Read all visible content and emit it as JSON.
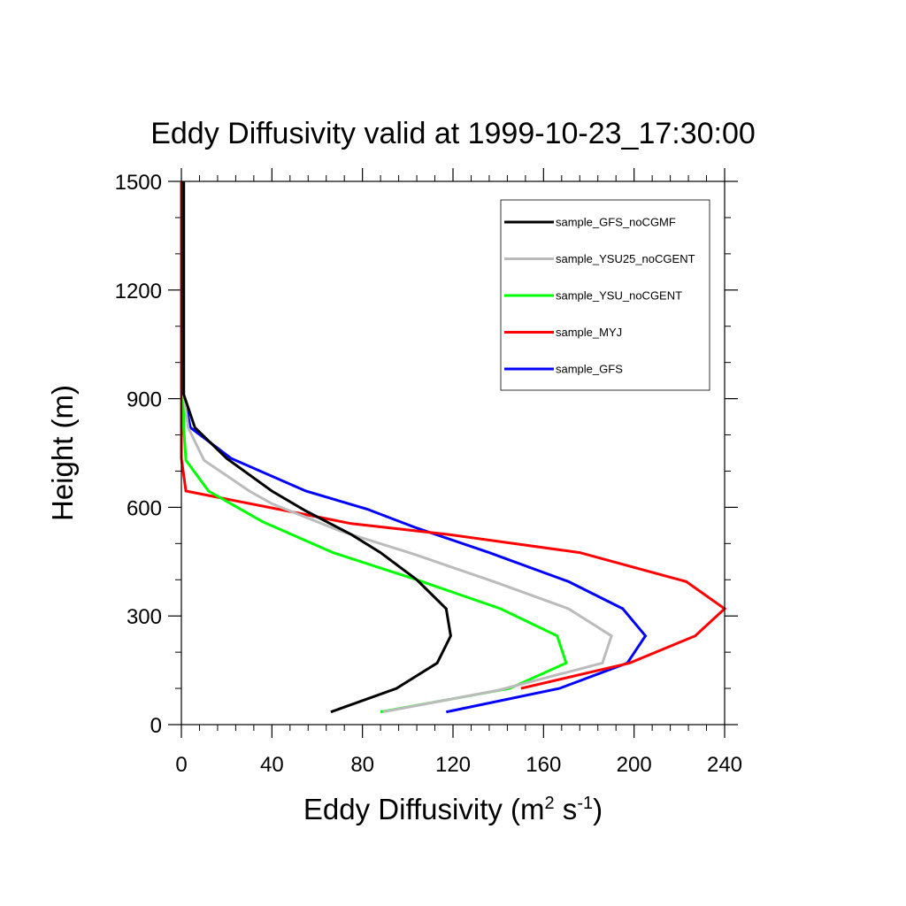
{
  "chart_data": {
    "type": "line",
    "title": "Eddy Diffusivity valid at 1999-10-23_17:30:00",
    "xlabel_main": "Eddy Diffusivity (m",
    "xlabel_sup1": "2",
    "xlabel_mid": " s",
    "xlabel_sup2": "-1",
    "xlabel_end": ")",
    "ylabel": "Height (m)",
    "xlim": [
      0,
      240
    ],
    "ylim": [
      0,
      1500
    ],
    "xticks": [
      0,
      40,
      80,
      120,
      160,
      200,
      240
    ],
    "yticks": [
      0,
      300,
      600,
      900,
      1200,
      1500
    ],
    "legend_position": "top-right",
    "series": [
      {
        "name": "sample_GFS_noCGMF",
        "color": "#000000",
        "points": [
          [
            66,
            35
          ],
          [
            95,
            100
          ],
          [
            113,
            170
          ],
          [
            119,
            245
          ],
          [
            117,
            320
          ],
          [
            104,
            400
          ],
          [
            88,
            475
          ],
          [
            75,
            525
          ],
          [
            55,
            590
          ],
          [
            40,
            645
          ],
          [
            20,
            735
          ],
          [
            6,
            820
          ],
          [
            1,
            912
          ],
          [
            1,
            1000
          ],
          [
            1,
            1200
          ],
          [
            1,
            1500
          ]
        ]
      },
      {
        "name": "sample_YSU25_noCGENT",
        "color": "#bbbbbb",
        "points": [
          [
            89,
            35
          ],
          [
            140,
            95
          ],
          [
            186,
            170
          ],
          [
            190,
            245
          ],
          [
            171,
            320
          ],
          [
            138,
            395
          ],
          [
            103,
            470
          ],
          [
            70,
            535
          ],
          [
            40,
            610
          ],
          [
            30,
            645
          ],
          [
            10,
            730
          ],
          [
            3,
            820
          ],
          [
            1,
            910
          ],
          [
            1,
            1000
          ],
          [
            1,
            1500
          ]
        ]
      },
      {
        "name": "sample_YSU_noCGENT",
        "color": "#00ff00",
        "points": [
          [
            88,
            35
          ],
          [
            145,
            100
          ],
          [
            170,
            170
          ],
          [
            166,
            245
          ],
          [
            141,
            320
          ],
          [
            104,
            400
          ],
          [
            67,
            475
          ],
          [
            36,
            560
          ],
          [
            12,
            645
          ],
          [
            2,
            730
          ],
          [
            1,
            820
          ],
          [
            1,
            910
          ],
          [
            1,
            1500
          ]
        ]
      },
      {
        "name": "sample_MYJ",
        "color": "#ff0000",
        "points": [
          [
            150,
            100
          ],
          [
            198,
            170
          ],
          [
            227,
            245
          ],
          [
            240,
            320
          ],
          [
            223,
            395
          ],
          [
            176,
            475
          ],
          [
            118,
            525
          ],
          [
            75,
            555
          ],
          [
            55,
            580
          ],
          [
            2,
            645
          ],
          [
            0,
            735
          ],
          [
            0,
            820
          ],
          [
            0,
            910
          ],
          [
            0,
            1500
          ]
        ]
      },
      {
        "name": "sample_GFS",
        "color": "#0000ff",
        "points": [
          [
            117,
            35
          ],
          [
            167,
            100
          ],
          [
            197,
            170
          ],
          [
            205,
            245
          ],
          [
            195,
            320
          ],
          [
            171,
            395
          ],
          [
            136,
            475
          ],
          [
            103,
            545
          ],
          [
            82,
            595
          ],
          [
            55,
            645
          ],
          [
            22,
            735
          ],
          [
            4,
            820
          ],
          [
            1,
            912
          ],
          [
            1,
            1000
          ],
          [
            1,
            1500
          ]
        ]
      }
    ]
  }
}
